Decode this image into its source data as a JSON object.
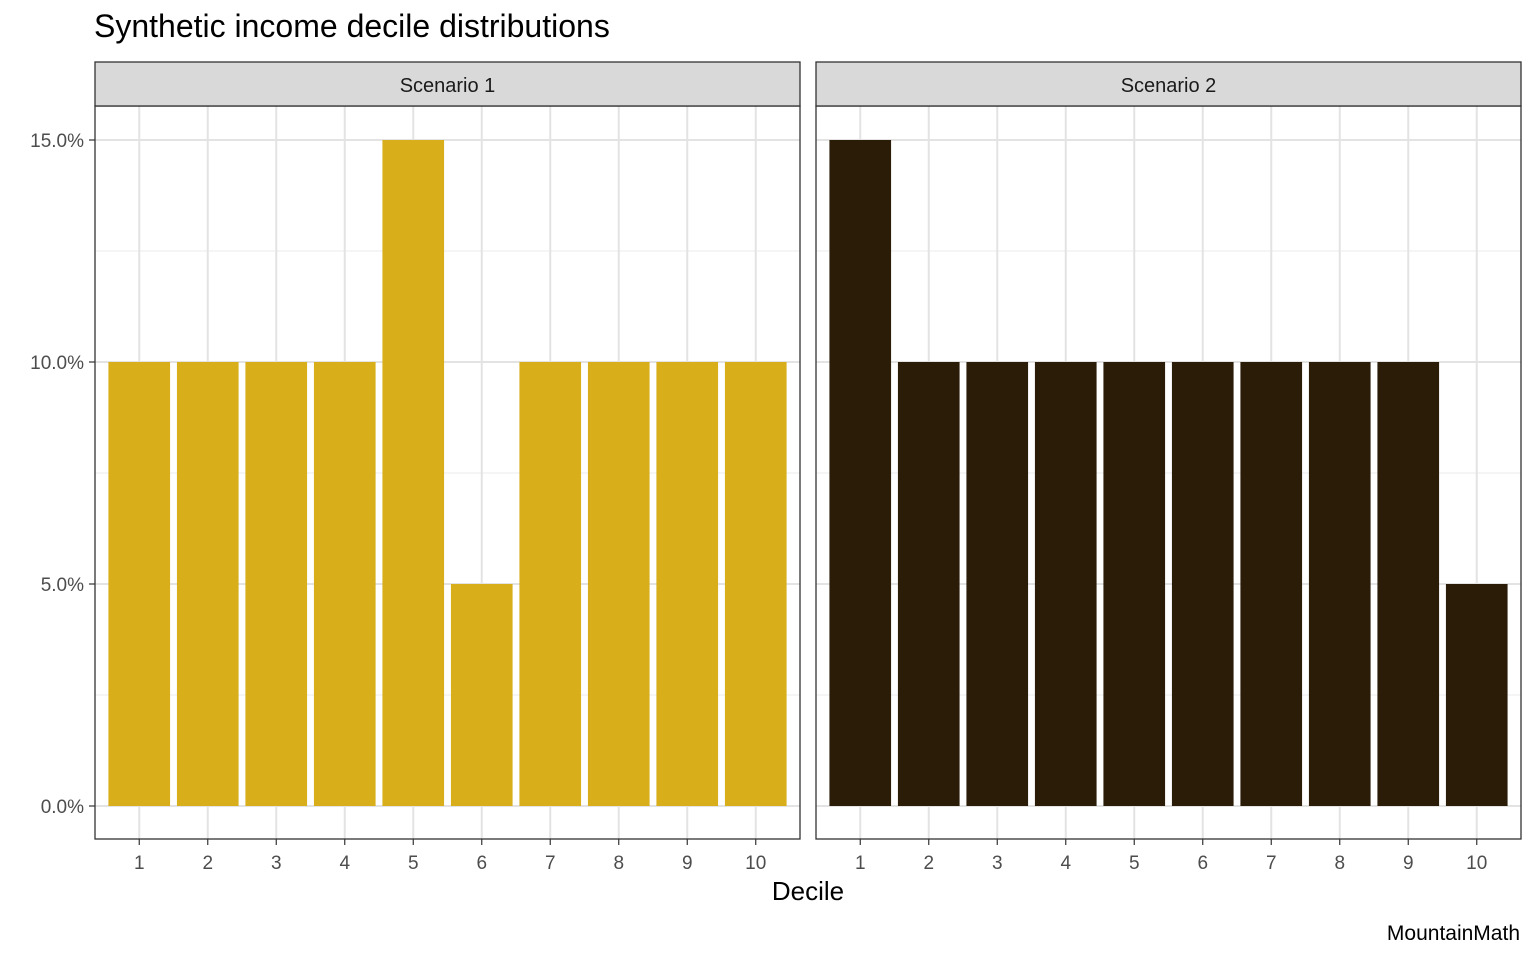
{
  "title": "Synthetic income decile distributions",
  "caption": "MountainMath",
  "chart_data": {
    "type": "bar",
    "title": "Synthetic income decile distributions",
    "xlabel": "Decile",
    "ylabel": "",
    "ylim": [
      0,
      0.15
    ],
    "y_ticks": [
      "0.0%",
      "5.0%",
      "10.0%",
      "15.0%"
    ],
    "grid": true,
    "categories": [
      "1",
      "2",
      "3",
      "4",
      "5",
      "6",
      "7",
      "8",
      "9",
      "10"
    ],
    "panels": [
      {
        "name": "Scenario 1",
        "color": "#D8AE1A",
        "values": [
          0.1,
          0.1,
          0.1,
          0.1,
          0.15,
          0.05,
          0.1,
          0.1,
          0.1,
          0.1
        ]
      },
      {
        "name": "Scenario 2",
        "color": "#2B1C08",
        "values": [
          0.15,
          0.1,
          0.1,
          0.1,
          0.1,
          0.1,
          0.1,
          0.1,
          0.1,
          0.05
        ]
      }
    ]
  }
}
